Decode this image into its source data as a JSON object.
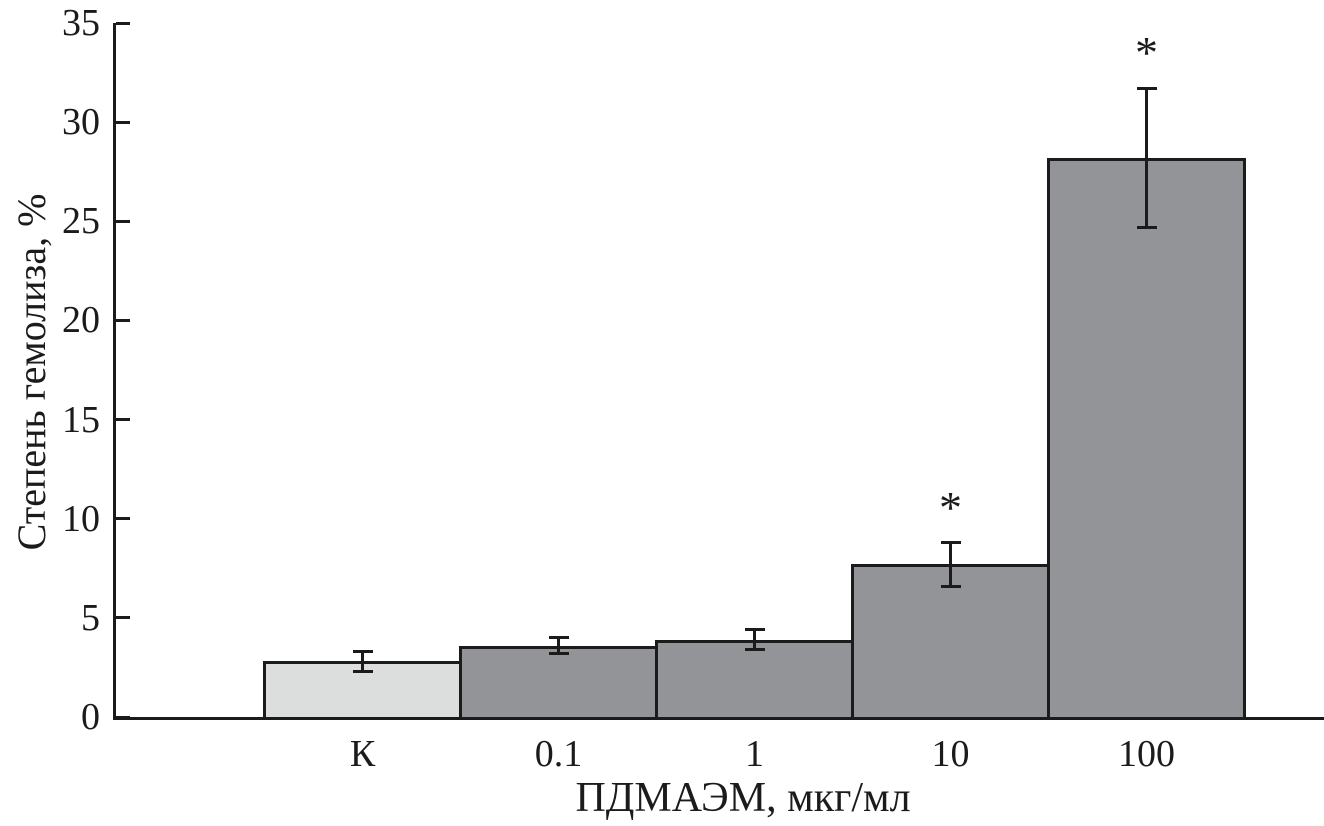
{
  "figure": {
    "background": "#ffffff",
    "axis_color": "#1b1b1b",
    "text_color": "#1b1b1b"
  },
  "chart_data": {
    "type": "bar",
    "title": "",
    "ylabel": "Степень гемолиза, %",
    "xlabel": "ПДМАЭМ, мкг/мл",
    "categories": [
      "К",
      "0.1",
      "1",
      "10",
      "100"
    ],
    "values": [
      2.8,
      3.6,
      3.9,
      7.7,
      28.2
    ],
    "error_bars": [
      0.5,
      0.4,
      0.5,
      1.1,
      3.5
    ],
    "significance_markers": [
      "",
      "",
      "",
      "*",
      "*"
    ],
    "bar_colors": [
      "#dcdddd",
      "#929497",
      "#929497",
      "#929497",
      "#929497"
    ],
    "bar_edge_color": "#1b1b1b",
    "ylim": [
      0,
      35
    ],
    "yticks": [
      0,
      5,
      10,
      15,
      20,
      25,
      30,
      35
    ],
    "grid": false,
    "legend": null,
    "axes_shown": [
      "left",
      "bottom"
    ]
  }
}
